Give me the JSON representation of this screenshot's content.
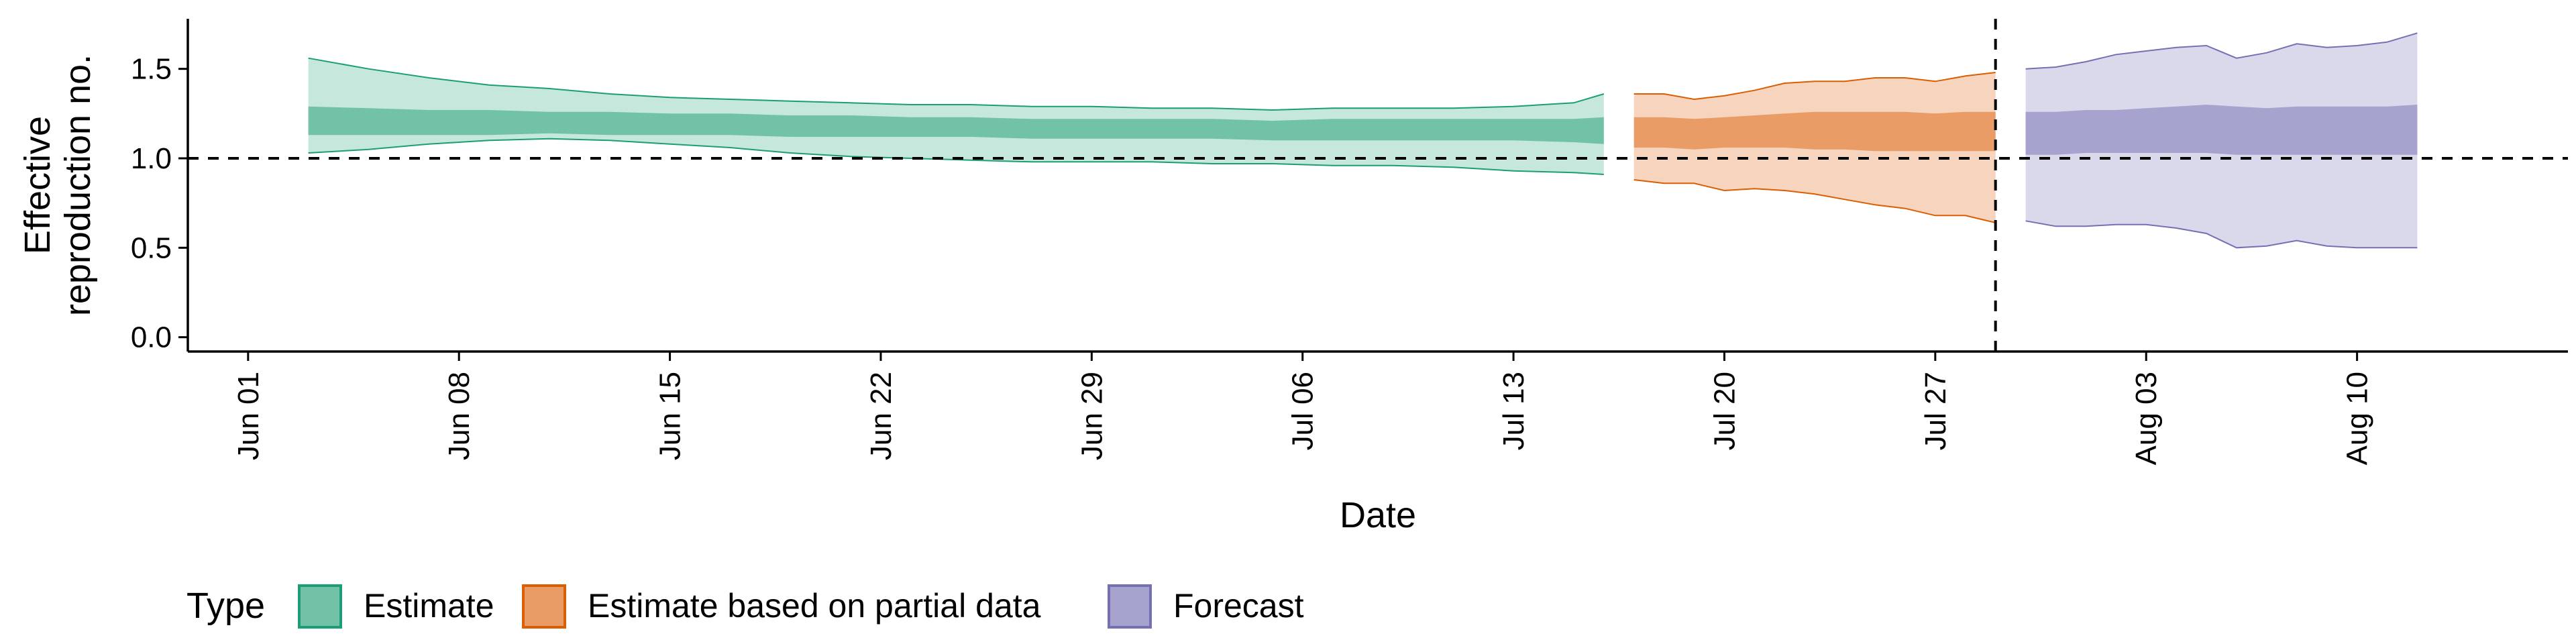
{
  "chart_data": {
    "type": "area",
    "title": "",
    "xlabel": "Date",
    "ylabel": [
      "Effective",
      "reproduction no."
    ],
    "x_axis": {
      "type": "date",
      "ticks": [
        "2020-06-01",
        "2020-06-08",
        "2020-06-15",
        "2020-06-22",
        "2020-06-29",
        "2020-07-06",
        "2020-07-13",
        "2020-07-20",
        "2020-07-27",
        "2020-08-03",
        "2020-08-10"
      ],
      "tick_labels": [
        "Jun 01",
        "Jun 08",
        "Jun 15",
        "Jun 22",
        "Jun 29",
        "Jul 06",
        "Jul 13",
        "Jul 20",
        "Jul 27",
        "Aug 03",
        "Aug 10"
      ],
      "range": [
        "2020-05-30",
        "2020-08-17"
      ],
      "tick_label_rotation": "vertical"
    },
    "y_axis": {
      "ticks": [
        0,
        0.5,
        1,
        1.5
      ],
      "tick_labels": [
        "0.0",
        "0.5",
        "1.0",
        "1.5"
      ],
      "ylim": [
        -0.08,
        1.78
      ]
    },
    "reference_lines": [
      {
        "axis": "y",
        "value": 1.0,
        "style": "dashed"
      },
      {
        "axis": "x",
        "value": "2020-07-29",
        "style": "dashed"
      }
    ],
    "grid": false,
    "legend": {
      "title": "Type",
      "position": "bottom-left",
      "entries": [
        {
          "label": "Estimate",
          "fill": "#72c2a8",
          "stroke": "#1b9e77"
        },
        {
          "label": "Estimate based on partial data",
          "fill": "#e99c66",
          "stroke": "#d95f02"
        },
        {
          "label": "Forecast",
          "fill": "#a6a3cf",
          "stroke": "#7570b3"
        }
      ]
    },
    "series": [
      {
        "name": "Estimate",
        "outer_color": "#c6e8dc",
        "inner_color": "#72c2a8",
        "edge_color": "#1b9e77",
        "x": [
          "2020-06-03",
          "2020-06-05",
          "2020-06-07",
          "2020-06-09",
          "2020-06-11",
          "2020-06-13",
          "2020-06-15",
          "2020-06-17",
          "2020-06-19",
          "2020-06-21",
          "2020-06-23",
          "2020-06-25",
          "2020-06-27",
          "2020-06-29",
          "2020-07-01",
          "2020-07-03",
          "2020-07-05",
          "2020-07-07",
          "2020-07-09",
          "2020-07-11",
          "2020-07-13",
          "2020-07-15",
          "2020-07-16"
        ],
        "upper90": [
          1.56,
          1.5,
          1.45,
          1.41,
          1.39,
          1.36,
          1.34,
          1.33,
          1.32,
          1.31,
          1.3,
          1.3,
          1.29,
          1.29,
          1.28,
          1.28,
          1.27,
          1.28,
          1.28,
          1.28,
          1.29,
          1.31,
          1.36
        ],
        "upper50": [
          1.29,
          1.28,
          1.27,
          1.27,
          1.26,
          1.26,
          1.25,
          1.25,
          1.24,
          1.24,
          1.23,
          1.23,
          1.22,
          1.22,
          1.22,
          1.22,
          1.21,
          1.22,
          1.22,
          1.22,
          1.22,
          1.22,
          1.23
        ],
        "lower50": [
          1.13,
          1.13,
          1.13,
          1.13,
          1.14,
          1.13,
          1.13,
          1.13,
          1.12,
          1.12,
          1.12,
          1.12,
          1.11,
          1.11,
          1.11,
          1.11,
          1.1,
          1.1,
          1.1,
          1.1,
          1.1,
          1.09,
          1.08
        ],
        "lower90": [
          1.03,
          1.05,
          1.08,
          1.1,
          1.11,
          1.1,
          1.08,
          1.06,
          1.03,
          1.01,
          1.0,
          0.99,
          0.98,
          0.98,
          0.98,
          0.97,
          0.97,
          0.96,
          0.96,
          0.95,
          0.93,
          0.92,
          0.91
        ]
      },
      {
        "name": "Estimate based on partial data",
        "outer_color": "#f6d4be",
        "inner_color": "#e99c66",
        "edge_color": "#d95f02",
        "x": [
          "2020-07-17",
          "2020-07-18",
          "2020-07-19",
          "2020-07-20",
          "2020-07-21",
          "2020-07-22",
          "2020-07-23",
          "2020-07-24",
          "2020-07-25",
          "2020-07-26",
          "2020-07-27",
          "2020-07-28",
          "2020-07-29"
        ],
        "upper90": [
          1.36,
          1.36,
          1.33,
          1.35,
          1.38,
          1.42,
          1.43,
          1.43,
          1.45,
          1.45,
          1.43,
          1.46,
          1.48
        ],
        "upper50": [
          1.23,
          1.23,
          1.22,
          1.23,
          1.24,
          1.25,
          1.26,
          1.26,
          1.26,
          1.26,
          1.25,
          1.26,
          1.26
        ],
        "lower50": [
          1.06,
          1.06,
          1.05,
          1.06,
          1.06,
          1.06,
          1.05,
          1.05,
          1.04,
          1.04,
          1.04,
          1.04,
          1.04
        ],
        "lower90": [
          0.88,
          0.86,
          0.86,
          0.82,
          0.83,
          0.82,
          0.8,
          0.77,
          0.74,
          0.72,
          0.68,
          0.68,
          0.64
        ]
      },
      {
        "name": "Forecast",
        "outer_color": "#dad9ec",
        "inner_color": "#a6a3cf",
        "edge_color": "#7570b3",
        "x": [
          "2020-07-30",
          "2020-07-31",
          "2020-08-01",
          "2020-08-02",
          "2020-08-03",
          "2020-08-04",
          "2020-08-05",
          "2020-08-06",
          "2020-08-07",
          "2020-08-08",
          "2020-08-09",
          "2020-08-10",
          "2020-08-11",
          "2020-08-12"
        ],
        "upper90": [
          1.5,
          1.51,
          1.54,
          1.58,
          1.6,
          1.62,
          1.63,
          1.56,
          1.59,
          1.64,
          1.62,
          1.63,
          1.65,
          1.7
        ],
        "upper50": [
          1.26,
          1.26,
          1.27,
          1.27,
          1.28,
          1.29,
          1.3,
          1.29,
          1.28,
          1.29,
          1.29,
          1.29,
          1.29,
          1.3
        ],
        "lower50": [
          1.02,
          1.02,
          1.03,
          1.03,
          1.03,
          1.03,
          1.03,
          1.02,
          1.02,
          1.02,
          1.02,
          1.02,
          1.02,
          1.02
        ],
        "lower90": [
          0.65,
          0.62,
          0.62,
          0.63,
          0.63,
          0.61,
          0.58,
          0.5,
          0.51,
          0.54,
          0.51,
          0.5,
          0.5,
          0.5
        ]
      }
    ]
  }
}
